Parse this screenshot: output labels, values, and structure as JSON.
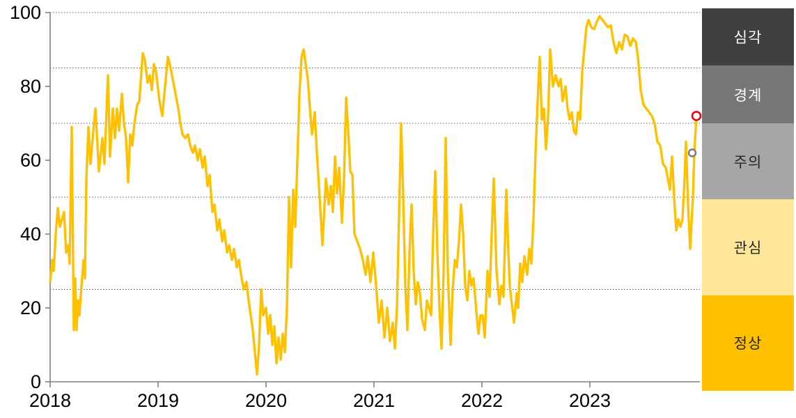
{
  "chart_data": {
    "type": "line",
    "title": "",
    "xlabel": "",
    "ylabel": "",
    "y_ticks": [
      0,
      20,
      40,
      60,
      80,
      100
    ],
    "y_range": [
      0,
      100
    ],
    "x_tick_labels": [
      "2018",
      "2019",
      "2020",
      "2021",
      "2022",
      "2023"
    ],
    "x_unit_note": "series points are [dx, value]; dx = 155ths of a year elapsed since 2018-01-01 (155 units per year)",
    "x_scale_units_per_year": 155,
    "gridlines_y": [
      100,
      85,
      70,
      50,
      25
    ],
    "grid_style": "dotted",
    "legend_position": "right-band",
    "series": [
      {
        "name": "index",
        "color": "#FFC000",
        "points": [
          [
            0,
            27
          ],
          [
            3,
            33
          ],
          [
            5,
            30
          ],
          [
            8,
            40
          ],
          [
            11,
            47
          ],
          [
            14,
            42
          ],
          [
            17,
            44
          ],
          [
            20,
            46
          ],
          [
            23,
            35
          ],
          [
            26,
            37
          ],
          [
            28,
            32
          ],
          [
            31,
            69
          ],
          [
            34,
            14
          ],
          [
            36,
            28
          ],
          [
            38,
            14
          ],
          [
            40,
            22
          ],
          [
            42,
            18
          ],
          [
            45,
            26
          ],
          [
            48,
            33
          ],
          [
            50,
            28
          ],
          [
            52,
            55
          ],
          [
            55,
            69
          ],
          [
            58,
            59
          ],
          [
            62,
            68
          ],
          [
            65,
            74
          ],
          [
            68,
            64
          ],
          [
            70,
            57
          ],
          [
            75,
            66
          ],
          [
            78,
            59
          ],
          [
            83,
            83
          ],
          [
            86,
            61
          ],
          [
            90,
            74
          ],
          [
            93,
            66
          ],
          [
            96,
            74
          ],
          [
            99,
            68
          ],
          [
            103,
            78
          ],
          [
            106,
            70
          ],
          [
            109,
            66
          ],
          [
            112,
            54
          ],
          [
            115,
            67
          ],
          [
            118,
            64
          ],
          [
            121,
            70
          ],
          [
            125,
            75
          ],
          [
            128,
            76
          ],
          [
            133,
            89
          ],
          [
            136,
            87
          ],
          [
            140,
            81
          ],
          [
            143,
            83
          ],
          [
            146,
            79
          ],
          [
            149,
            86
          ],
          [
            152,
            84
          ],
          [
            157,
            76
          ],
          [
            161,
            72
          ],
          [
            165,
            80
          ],
          [
            169,
            88
          ],
          [
            173,
            85
          ],
          [
            176,
            82
          ],
          [
            180,
            78
          ],
          [
            184,
            74
          ],
          [
            187,
            70
          ],
          [
            190,
            67
          ],
          [
            194,
            66
          ],
          [
            198,
            67
          ],
          [
            201,
            64
          ],
          [
            205,
            62
          ],
          [
            208,
            64
          ],
          [
            212,
            60
          ],
          [
            215,
            63
          ],
          [
            219,
            58
          ],
          [
            222,
            61
          ],
          [
            226,
            53
          ],
          [
            229,
            56
          ],
          [
            233,
            46
          ],
          [
            236,
            48
          ],
          [
            240,
            41
          ],
          [
            243,
            44
          ],
          [
            247,
            38
          ],
          [
            250,
            41
          ],
          [
            254,
            35
          ],
          [
            257,
            37
          ],
          [
            261,
            33
          ],
          [
            264,
            36
          ],
          [
            268,
            31
          ],
          [
            271,
            33
          ],
          [
            275,
            28
          ],
          [
            278,
            25
          ],
          [
            282,
            27
          ],
          [
            285,
            22
          ],
          [
            288,
            18
          ],
          [
            291,
            14
          ],
          [
            294,
            8
          ],
          [
            297,
            2
          ],
          [
            300,
            10
          ],
          [
            303,
            25
          ],
          [
            306,
            18
          ],
          [
            310,
            20
          ],
          [
            313,
            13
          ],
          [
            316,
            18
          ],
          [
            319,
            10
          ],
          [
            322,
            15
          ],
          [
            325,
            5
          ],
          [
            328,
            12
          ],
          [
            331,
            6
          ],
          [
            334,
            13
          ],
          [
            337,
            8
          ],
          [
            340,
            20
          ],
          [
            343,
            50
          ],
          [
            346,
            31
          ],
          [
            349,
            52
          ],
          [
            352,
            42
          ],
          [
            355,
            60
          ],
          [
            358,
            78
          ],
          [
            361,
            88
          ],
          [
            364,
            90
          ],
          [
            367,
            86
          ],
          [
            370,
            82
          ],
          [
            373,
            74
          ],
          [
            376,
            67
          ],
          [
            380,
            73
          ],
          [
            383,
            62
          ],
          [
            386,
            53
          ],
          [
            391,
            37
          ],
          [
            396,
            55
          ],
          [
            400,
            48
          ],
          [
            403,
            53
          ],
          [
            406,
            46
          ],
          [
            409,
            61
          ],
          [
            412,
            51
          ],
          [
            415,
            58
          ],
          [
            419,
            43
          ],
          [
            422,
            55
          ],
          [
            425,
            77
          ],
          [
            428,
            68
          ],
          [
            431,
            57
          ],
          [
            434,
            56
          ],
          [
            437,
            40
          ],
          [
            441,
            38
          ],
          [
            445,
            36
          ],
          [
            449,
            33
          ],
          [
            453,
            29
          ],
          [
            456,
            34
          ],
          [
            460,
            27
          ],
          [
            464,
            35
          ],
          [
            468,
            26
          ],
          [
            472,
            16
          ],
          [
            476,
            22
          ],
          [
            480,
            12
          ],
          [
            484,
            20
          ],
          [
            488,
            11
          ],
          [
            492,
            16
          ],
          [
            495,
            9
          ],
          [
            498,
            20
          ],
          [
            501,
            45
          ],
          [
            504,
            70
          ],
          [
            507,
            50
          ],
          [
            510,
            26
          ],
          [
            513,
            14
          ],
          [
            516,
            35
          ],
          [
            519,
            48
          ],
          [
            522,
            30
          ],
          [
            525,
            21
          ],
          [
            528,
            27
          ],
          [
            531,
            24
          ],
          [
            534,
            17
          ],
          [
            538,
            14
          ],
          [
            541,
            22
          ],
          [
            544,
            20
          ],
          [
            547,
            18
          ],
          [
            550,
            40
          ],
          [
            553,
            57
          ],
          [
            556,
            35
          ],
          [
            559,
            20
          ],
          [
            562,
            9
          ],
          [
            565,
            30
          ],
          [
            568,
            66
          ],
          [
            571,
            30
          ],
          [
            575,
            10
          ],
          [
            578,
            25
          ],
          [
            581,
            33
          ],
          [
            584,
            31
          ],
          [
            587,
            38
          ],
          [
            590,
            48
          ],
          [
            593,
            40
          ],
          [
            596,
            26
          ],
          [
            599,
            22
          ],
          [
            602,
            30
          ],
          [
            605,
            26
          ],
          [
            608,
            28
          ],
          [
            612,
            19
          ],
          [
            615,
            13
          ],
          [
            618,
            18
          ],
          [
            621,
            18
          ],
          [
            624,
            12
          ],
          [
            628,
            30
          ],
          [
            631,
            23
          ],
          [
            634,
            40
          ],
          [
            637,
            55
          ],
          [
            641,
            30
          ],
          [
            645,
            21
          ],
          [
            648,
            26
          ],
          [
            651,
            23
          ],
          [
            655,
            52
          ],
          [
            658,
            35
          ],
          [
            660,
            26
          ],
          [
            663,
            21
          ],
          [
            666,
            16
          ],
          [
            670,
            24
          ],
          [
            672,
            20
          ],
          [
            675,
            32
          ],
          [
            678,
            27
          ],
          [
            681,
            34
          ],
          [
            685,
            29
          ],
          [
            688,
            36
          ],
          [
            691,
            32
          ],
          [
            694,
            44
          ],
          [
            697,
            62
          ],
          [
            700,
            76
          ],
          [
            703,
            88
          ],
          [
            706,
            71
          ],
          [
            709,
            74
          ],
          [
            712,
            63
          ],
          [
            715,
            72
          ],
          [
            718,
            90
          ],
          [
            722,
            80
          ],
          [
            726,
            83
          ],
          [
            730,
            80
          ],
          [
            733,
            82
          ],
          [
            736,
            76
          ],
          [
            740,
            80
          ],
          [
            743,
            74
          ],
          [
            746,
            71
          ],
          [
            749,
            73
          ],
          [
            752,
            68
          ],
          [
            755,
            67
          ],
          [
            758,
            73
          ],
          [
            761,
            71
          ],
          [
            764,
            84
          ],
          [
            767,
            90
          ],
          [
            770,
            96
          ],
          [
            773,
            98
          ],
          [
            777,
            96
          ],
          [
            781,
            95.5
          ],
          [
            785,
            97.5
          ],
          [
            789,
            99
          ],
          [
            793,
            98
          ],
          [
            797,
            97
          ],
          [
            801,
            96
          ],
          [
            805,
            96.5
          ],
          [
            809,
            92
          ],
          [
            813,
            89
          ],
          [
            817,
            92
          ],
          [
            821,
            90
          ],
          [
            825,
            94
          ],
          [
            829,
            93.5
          ],
          [
            833,
            91
          ],
          [
            837,
            93
          ],
          [
            841,
            92
          ],
          [
            844,
            88
          ],
          [
            848,
            79
          ],
          [
            852,
            75
          ],
          [
            856,
            74
          ],
          [
            860,
            73
          ],
          [
            864,
            72
          ],
          [
            868,
            70
          ],
          [
            872,
            65
          ],
          [
            876,
            64
          ],
          [
            880,
            59
          ],
          [
            884,
            58
          ],
          [
            887,
            55
          ],
          [
            890,
            52
          ],
          [
            893,
            61
          ],
          [
            896,
            50
          ],
          [
            899,
            41
          ],
          [
            902,
            44
          ],
          [
            905,
            42
          ],
          [
            908,
            44
          ],
          [
            911,
            55
          ],
          [
            913,
            65
          ],
          [
            916,
            48
          ],
          [
            919,
            36
          ],
          [
            923,
            50
          ],
          [
            925,
            62
          ],
          [
            928,
            72
          ]
        ]
      }
    ],
    "markers": [
      {
        "name": "gray-circle-marker",
        "dx": 922,
        "value": 62,
        "stroke": "#7F7F7F",
        "radius": 5
      },
      {
        "name": "red-circle-marker",
        "dx": 928,
        "value": 72,
        "stroke": "#E30613",
        "radius": 6
      }
    ]
  },
  "legend": {
    "bands": [
      {
        "label": "심각",
        "range": [
          85,
          100
        ],
        "color": "#404040",
        "text_color": "#FFFFFF"
      },
      {
        "label": "경계",
        "range": [
          70,
          85
        ],
        "color": "#767676",
        "text_color": "#FFFFFF"
      },
      {
        "label": "주의",
        "range": [
          50,
          70
        ],
        "color": "#A6A6A6",
        "text_color": "#262626"
      },
      {
        "label": "관심",
        "range": [
          25,
          50
        ],
        "color": "#FFE699",
        "text_color": "#262626"
      },
      {
        "label": "정상",
        "range": [
          0,
          25
        ],
        "color": "#FFC000",
        "text_color": "#262626"
      }
    ]
  },
  "style": {
    "background": "#FFFFFF",
    "axis_color": "#808080",
    "grid_color": "#595959",
    "tick_label_color": "#000000",
    "line_color": "#FFC000"
  }
}
